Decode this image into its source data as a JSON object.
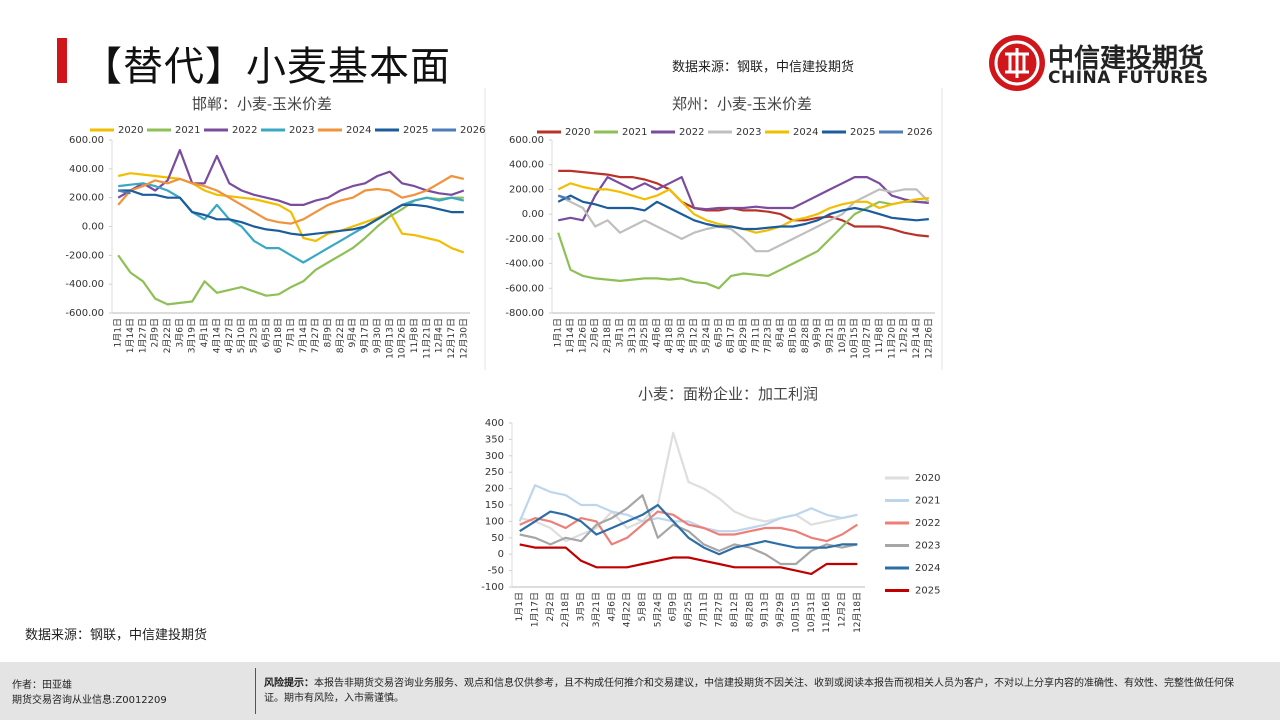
{
  "header": {
    "title": "【替代】小麦基本面",
    "source": "数据来源：钢联，中信建投期货"
  },
  "logo": {
    "name": "中信建投期货",
    "english": "CHINA FUTURES"
  },
  "bottom_source": "数据来源：钢联，中信建投期货",
  "footer": {
    "author": "作者：田亚雄",
    "license": "期货交易咨询从业信息:Z0012209",
    "risk_label": "风险提示：",
    "risk_text": "本报告非期货交易咨询业务服务、观点和信息仅供参考，且不构成任何推介和交易建议，中信建投期货不因关注、收到或阅读本报告而视相关人员为客户，不对以上分享内容的准确性、有效性、完整性做任何保证。期市有风险，入市需谨慎。"
  },
  "chart_data": [
    {
      "type": "line",
      "title": "邯郸：小麦-玉米价差",
      "legend": "top",
      "categories": [
        "1月1日",
        "1月14日",
        "1月27日",
        "2月9日",
        "2月22日",
        "3月6日",
        "3月19日",
        "4月1日",
        "4月14日",
        "4月27日",
        "5月10日",
        "5月23日",
        "6月5日",
        "6月18日",
        "7月1日",
        "7月14日",
        "7月27日",
        "8月9日",
        "8月22日",
        "9月4日",
        "9月17日",
        "9月30日",
        "10月13日",
        "10月26日",
        "11月8日",
        "11月21日",
        "12月4日",
        "12月17日",
        "12月30日"
      ],
      "ylim": [
        -600,
        600
      ],
      "yticks": [
        {
          "value": -600,
          "label": "-600.00"
        },
        {
          "value": -400,
          "label": "-400.00"
        },
        {
          "value": -200,
          "label": "-200.00"
        },
        {
          "value": 0,
          "label": "0.00"
        },
        {
          "value": 200,
          "label": "200.00"
        },
        {
          "value": 400,
          "label": "400.00"
        },
        {
          "value": 600,
          "label": "600.00"
        }
      ],
      "series": [
        {
          "name": "2020",
          "color": "#f2be00",
          "values": [
            350,
            370,
            360,
            350,
            340,
            330,
            300,
            250,
            220,
            210,
            200,
            190,
            170,
            150,
            100,
            -80,
            -100,
            -50,
            -30,
            0,
            30,
            60,
            100,
            -50,
            -60,
            -80,
            -100,
            -150,
            -180
          ]
        },
        {
          "name": "2021",
          "color": "#8fbf57",
          "values": [
            -200,
            -320,
            -380,
            -500,
            -540,
            -530,
            -520,
            -380,
            -460,
            -440,
            -420,
            -450,
            -480,
            -470,
            -420,
            -380,
            -300,
            -250,
            -200,
            -150,
            -80,
            0,
            70,
            120,
            180,
            200,
            190,
            200,
            200
          ]
        },
        {
          "name": "2022",
          "color": "#7a4c9e",
          "values": [
            200,
            250,
            300,
            250,
            320,
            530,
            300,
            300,
            490,
            300,
            250,
            220,
            200,
            180,
            150,
            150,
            180,
            200,
            250,
            280,
            300,
            350,
            380,
            300,
            280,
            250,
            230,
            220,
            250
          ]
        },
        {
          "name": "2023",
          "color": "#3aa8c4",
          "values": [
            280,
            290,
            300,
            280,
            250,
            200,
            100,
            50,
            150,
            50,
            0,
            -100,
            -150,
            -150,
            -200,
            -250,
            -200,
            -150,
            -100,
            -50,
            0,
            50,
            100,
            150,
            180,
            200,
            180,
            200,
            180
          ]
        },
        {
          "name": "2024",
          "color": "#f1923c",
          "values": [
            150,
            250,
            280,
            320,
            300,
            330,
            300,
            280,
            250,
            200,
            150,
            100,
            50,
            30,
            20,
            50,
            100,
            150,
            180,
            200,
            250,
            260,
            250,
            200,
            220,
            250,
            300,
            350,
            330
          ]
        },
        {
          "name": "2025",
          "color": "#1b5c9c",
          "values": [
            250,
            250,
            220,
            220,
            200,
            200,
            100,
            80,
            50,
            50,
            30,
            0,
            -20,
            -30,
            -50,
            -60,
            -50,
            -40,
            -30,
            -20,
            0,
            50,
            100,
            150,
            150,
            140,
            120,
            100,
            100
          ]
        },
        {
          "name": "2026",
          "color": "#4d7db9",
          "values": [
            250,
            230,
            null,
            null,
            null,
            null,
            null,
            null,
            null,
            null,
            null,
            null,
            null,
            null,
            null,
            null,
            null,
            null,
            null,
            null,
            null,
            null,
            null,
            null,
            null,
            null,
            null,
            null,
            null
          ]
        }
      ]
    },
    {
      "type": "line",
      "title": "郑州：小麦-玉米价差",
      "legend": "top",
      "categories": [
        "1月1日",
        "1月14日",
        "1月26日",
        "2月6日",
        "2月18日",
        "3月1日",
        "3月13日",
        "3月25日",
        "4月6日",
        "4月18日",
        "4月30日",
        "5月12日",
        "5月24日",
        "6月5日",
        "6月17日",
        "6月29日",
        "7月11日",
        "7月23日",
        "8月4日",
        "8月16日",
        "8月28日",
        "9月9日",
        "9月21日",
        "10月3日",
        "10月15日",
        "10月27日",
        "11月8日",
        "11月20日",
        "12月2日",
        "12月14日",
        "12月26日"
      ],
      "ylim": [
        -800,
        600
      ],
      "yticks": [
        {
          "value": -800,
          "label": "-800.00"
        },
        {
          "value": -600,
          "label": "-600.00"
        },
        {
          "value": -400,
          "label": "-400.00"
        },
        {
          "value": -200,
          "label": "-200.00"
        },
        {
          "value": 0,
          "label": "0.00"
        },
        {
          "value": 200,
          "label": "200.00"
        },
        {
          "value": 400,
          "label": "400.00"
        },
        {
          "value": 600,
          "label": "600.00"
        }
      ],
      "series": [
        {
          "name": "2020",
          "color": "#b8322a",
          "values": [
            350,
            350,
            340,
            330,
            320,
            300,
            300,
            280,
            250,
            200,
            100,
            50,
            30,
            30,
            50,
            30,
            30,
            20,
            0,
            -50,
            -50,
            -30,
            -20,
            -50,
            -100,
            -100,
            -100,
            -120,
            -150,
            -170,
            -180
          ]
        },
        {
          "name": "2021",
          "color": "#8fbf57",
          "values": [
            -150,
            -450,
            -500,
            -520,
            -530,
            -540,
            -530,
            -520,
            -520,
            -530,
            -520,
            -550,
            -560,
            -600,
            -500,
            -480,
            -490,
            -500,
            -450,
            -400,
            -350,
            -300,
            -200,
            -100,
            0,
            50,
            100,
            80,
            100,
            100,
            100
          ]
        },
        {
          "name": "2022",
          "color": "#7a4c9e",
          "values": [
            -50,
            -30,
            -50,
            150,
            300,
            250,
            200,
            250,
            200,
            250,
            300,
            50,
            40,
            50,
            50,
            50,
            60,
            50,
            50,
            50,
            100,
            150,
            200,
            250,
            300,
            300,
            250,
            150,
            120,
            100,
            90
          ]
        },
        {
          "name": "2023",
          "color": "#bfbfbf",
          "values": [
            150,
            100,
            50,
            -100,
            -50,
            -150,
            -100,
            -50,
            -100,
            -150,
            -200,
            -150,
            -120,
            -100,
            -120,
            -200,
            -300,
            -300,
            -250,
            -200,
            -150,
            -100,
            -50,
            0,
            100,
            150,
            200,
            180,
            200,
            200,
            100
          ]
        },
        {
          "name": "2024",
          "color": "#f2be00",
          "values": [
            200,
            250,
            220,
            200,
            200,
            180,
            150,
            120,
            150,
            200,
            100,
            0,
            -50,
            -80,
            -100,
            -120,
            -150,
            -130,
            -100,
            -50,
            -30,
            0,
            50,
            80,
            100,
            100,
            50,
            80,
            100,
            120,
            130
          ]
        },
        {
          "name": "2025",
          "color": "#1b5c9c",
          "values": [
            100,
            150,
            100,
            80,
            50,
            50,
            50,
            30,
            100,
            50,
            0,
            -50,
            -80,
            -100,
            -100,
            -120,
            -120,
            -110,
            -100,
            -100,
            -80,
            -50,
            0,
            30,
            50,
            30,
            0,
            -30,
            -40,
            -50,
            -40
          ]
        },
        {
          "name": "2026",
          "color": "#4d7db9",
          "values": [
            150,
            120,
            null,
            null,
            null,
            null,
            null,
            null,
            null,
            null,
            null,
            null,
            null,
            null,
            null,
            null,
            null,
            null,
            null,
            null,
            null,
            null,
            null,
            null,
            null,
            null,
            null,
            null,
            null,
            null,
            null
          ]
        }
      ]
    },
    {
      "type": "line",
      "title": "小麦：面粉企业：加工利润",
      "legend": "right",
      "categories": [
        "1月1日",
        "1月17日",
        "2月2日",
        "2月18日",
        "3月5日",
        "3月21日",
        "4月6日",
        "4月22日",
        "5月8日",
        "5月24日",
        "6月9日",
        "6月25日",
        "7月11日",
        "7月27日",
        "8月12日",
        "8月28日",
        "9月13日",
        "9月29日",
        "10月15日",
        "10月31日",
        "11月16日",
        "12月2日",
        "12月18日"
      ],
      "ylim": [
        -100,
        400
      ],
      "yticks": [
        -100,
        -50,
        0,
        50,
        100,
        150,
        200,
        250,
        300,
        350,
        400
      ],
      "series": [
        {
          "name": "2020",
          "color": "#dedede",
          "values": [
            110,
            100,
            80,
            40,
            60,
            80,
            130,
            80,
            100,
            150,
            370,
            220,
            200,
            170,
            130,
            110,
            100,
            110,
            120,
            90,
            100,
            110,
            120
          ]
        },
        {
          "name": "2021",
          "color": "#bdd6ee",
          "values": [
            100,
            210,
            190,
            180,
            150,
            150,
            130,
            120,
            100,
            110,
            100,
            100,
            80,
            70,
            70,
            80,
            90,
            110,
            120,
            140,
            120,
            110,
            120
          ]
        },
        {
          "name": "2022",
          "color": "#ee7f78",
          "values": [
            90,
            110,
            100,
            80,
            110,
            100,
            30,
            50,
            90,
            130,
            120,
            90,
            80,
            60,
            60,
            70,
            80,
            80,
            70,
            50,
            40,
            60,
            90
          ]
        },
        {
          "name": "2023",
          "color": "#a6a6a6",
          "values": [
            60,
            50,
            30,
            50,
            40,
            90,
            110,
            140,
            180,
            50,
            90,
            70,
            30,
            10,
            30,
            20,
            0,
            -30,
            -30,
            10,
            30,
            20,
            30
          ]
        },
        {
          "name": "2024",
          "color": "#2e6ea6",
          "values": [
            70,
            100,
            130,
            120,
            100,
            60,
            80,
            100,
            120,
            150,
            100,
            50,
            20,
            0,
            20,
            30,
            40,
            30,
            20,
            20,
            20,
            30,
            30
          ]
        },
        {
          "name": "2025",
          "color": "#c00000",
          "values": [
            30,
            20,
            20,
            20,
            -20,
            -40,
            -40,
            -40,
            -30,
            -20,
            -10,
            -10,
            -20,
            -30,
            -40,
            -40,
            -40,
            -40,
            -50,
            -60,
            -30,
            -30,
            -30
          ]
        }
      ]
    }
  ]
}
